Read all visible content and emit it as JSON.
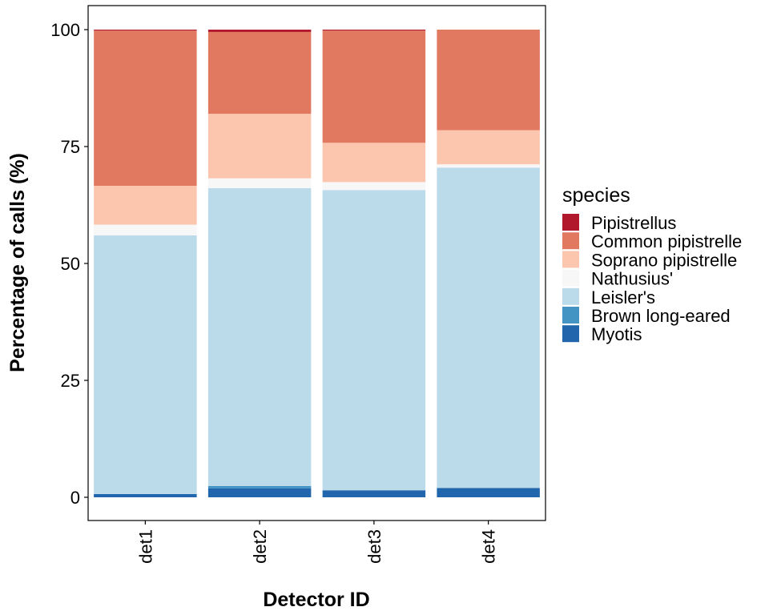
{
  "chart_data": {
    "type": "bar",
    "stacked": true,
    "xlabel": "Detector ID",
    "ylabel": "Percentage of calls (%)",
    "ylim": [
      0,
      100
    ],
    "yticks": [
      0,
      25,
      50,
      75,
      100
    ],
    "categories": [
      "det1",
      "det2",
      "det3",
      "det4"
    ],
    "legend_title": "species",
    "legend_position": "right",
    "series": [
      {
        "name": "Myotis",
        "color": "#2166AC",
        "values": [
          0.7,
          1.9,
          1.5,
          2.0
        ]
      },
      {
        "name": "Brown long-eared",
        "color": "#4393C3",
        "values": [
          0.0,
          0.5,
          0.0,
          0.0
        ]
      },
      {
        "name": "Leisler's",
        "color": "#BCDBEA",
        "values": [
          55.3,
          63.7,
          64.2,
          68.5
        ]
      },
      {
        "name": "Nathusius'",
        "color": "#F7F7F7",
        "values": [
          2.3,
          2.1,
          1.7,
          0.7
        ]
      },
      {
        "name": "Soprano pipistrelle",
        "color": "#FBC6AD",
        "values": [
          8.3,
          13.8,
          8.4,
          7.3
        ]
      },
      {
        "name": "Common pipistrelle",
        "color": "#E07960",
        "values": [
          33.2,
          17.5,
          24.0,
          21.5
        ]
      },
      {
        "name": "Pipistrellus",
        "color": "#B2182B",
        "values": [
          0.2,
          0.5,
          0.2,
          0.0
        ]
      }
    ],
    "legend_order": [
      "Pipistrellus",
      "Common pipistrelle",
      "Soprano pipistrelle",
      "Nathusius'",
      "Leisler's",
      "Brown long-eared",
      "Myotis"
    ]
  }
}
